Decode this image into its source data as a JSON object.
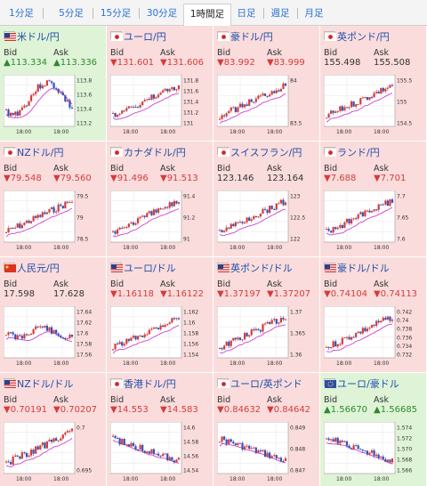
{
  "tabs": [
    "1分足",
    "5分足",
    "15分足",
    "30分足",
    "1時間足",
    "日足",
    "週足",
    "月足"
  ],
  "active_tab": "1時間足",
  "labels": {
    "bid": "Bid",
    "ask": "Ask"
  },
  "colors": {
    "up_bg": "#dff4d7",
    "down_bg": "#fbdcdc",
    "down_text": "#d63b3b",
    "up_text": "#2e8a2e",
    "title": "#1e4fa8",
    "candle_up": "#d63b3b",
    "candle_down": "#3550b5",
    "ma": "#d040d0"
  },
  "cells": [
    {
      "name": "米ドル/円",
      "flag": "us",
      "trend": "up",
      "bid": "▲113.334",
      "ask": "▲113.336",
      "ticks": [
        "113.8",
        "113.6",
        "113.4",
        "113.2"
      ],
      "xt": [
        "18:00",
        "18:00"
      ]
    },
    {
      "name": "ユーロ/円",
      "flag": "jp",
      "trend": "down",
      "bid": "▼131.601",
      "ask": "▼131.606",
      "ticks": [
        "131.8",
        "131.6",
        "131.4",
        "131.2",
        "131"
      ],
      "xt": [
        "18:00",
        "18:00"
      ]
    },
    {
      "name": "豪ドル/円",
      "flag": "jp",
      "trend": "down",
      "bid": "▼83.992",
      "ask": "▼83.999",
      "ticks": [
        "84",
        "83.5"
      ],
      "xt": [
        "18:00",
        "18:00"
      ]
    },
    {
      "name": "英ポンド/円",
      "flag": "jp",
      "trend": "none",
      "bid": "155.498",
      "ask": "155.508",
      "ticks": [
        "155.5",
        "155",
        "154.5"
      ],
      "xt": [
        "18:00",
        "18:00"
      ]
    },
    {
      "name": "NZドル/円",
      "flag": "jp",
      "trend": "down",
      "bid": "▼79.548",
      "ask": "▼79.560",
      "ticks": [
        "79.5",
        "79",
        "78.5"
      ],
      "xt": [
        "18:00",
        "18:00"
      ]
    },
    {
      "name": "カナダドル/円",
      "flag": "jp",
      "trend": "down",
      "bid": "▼91.496",
      "ask": "▼91.513",
      "ticks": [
        "91.4",
        "91.2",
        "91"
      ],
      "xt": [
        "18:00",
        "18:00"
      ]
    },
    {
      "name": "スイスフラン/円",
      "flag": "jp",
      "trend": "none",
      "bid": "123.146",
      "ask": "123.164",
      "ticks": [
        "123",
        "122.5",
        "122"
      ],
      "xt": [
        "18:00",
        "18:00"
      ]
    },
    {
      "name": "ランド/円",
      "flag": "jp",
      "trend": "down",
      "bid": "▼7.688",
      "ask": "▼7.701",
      "ticks": [
        "7.7",
        "7.65",
        "7.6"
      ],
      "xt": [
        "18:00",
        "18:00"
      ]
    },
    {
      "name": "人民元/円",
      "flag": "cn",
      "trend": "none",
      "bid": "17.598",
      "ask": "17.628",
      "ticks": [
        "17.64",
        "17.62",
        "17.6",
        "17.58",
        "17.56"
      ],
      "xt": [
        "18:00",
        "18:00"
      ]
    },
    {
      "name": "ユーロ/ドル",
      "flag": "us",
      "trend": "down",
      "bid": "▼1.16118",
      "ask": "▼1.16122",
      "ticks": [
        "1.162",
        "1.16",
        "1.158",
        "1.156",
        "1.154"
      ],
      "xt": [
        "18:00",
        "18:00"
      ]
    },
    {
      "name": "英ポンド/ドル",
      "flag": "us",
      "trend": "down",
      "bid": "▼1.37197",
      "ask": "▼1.37207",
      "ticks": [
        "1.37",
        "1.365",
        "1.36"
      ],
      "xt": [
        "18:00",
        "18:00"
      ]
    },
    {
      "name": "豪ドル/ドル",
      "flag": "us",
      "trend": "down",
      "bid": "▼0.74104",
      "ask": "▼0.74113",
      "ticks": [
        "0.742",
        "0.74",
        "0.738",
        "0.736",
        "0.734",
        "0.732"
      ],
      "xt": [
        "18:00",
        "18:00"
      ]
    },
    {
      "name": "NZドル/ドル",
      "flag": "us",
      "trend": "down",
      "bid": "▼0.70191",
      "ask": "▼0.70207",
      "ticks": [
        "0.7",
        "0.695"
      ],
      "xt": [
        "18:00",
        "18:00"
      ]
    },
    {
      "name": "香港ドル/円",
      "flag": "jp",
      "trend": "down",
      "bid": "▼14.553",
      "ask": "▼14.583",
      "ticks": [
        "14.6",
        "14.58",
        "14.56",
        "14.54"
      ],
      "xt": [
        "18:00",
        "18:00"
      ]
    },
    {
      "name": "ユーロ/英ポンド",
      "flag": "jp",
      "trend": "down",
      "bid": "▼0.84632",
      "ask": "▼0.84642",
      "ticks": [
        "0.849",
        "0.848",
        "0.847"
      ],
      "xt": [
        "18:00",
        "18:00"
      ]
    },
    {
      "name": "ユーロ/豪ドル",
      "flag": "eu",
      "trend": "up",
      "bid": "▲1.56670",
      "ask": "▲1.56685",
      "ticks": [
        "1.574",
        "1.572",
        "1.570",
        "1.568",
        "1.566"
      ],
      "xt": [
        "18:00",
        "18:00"
      ]
    }
  ]
}
